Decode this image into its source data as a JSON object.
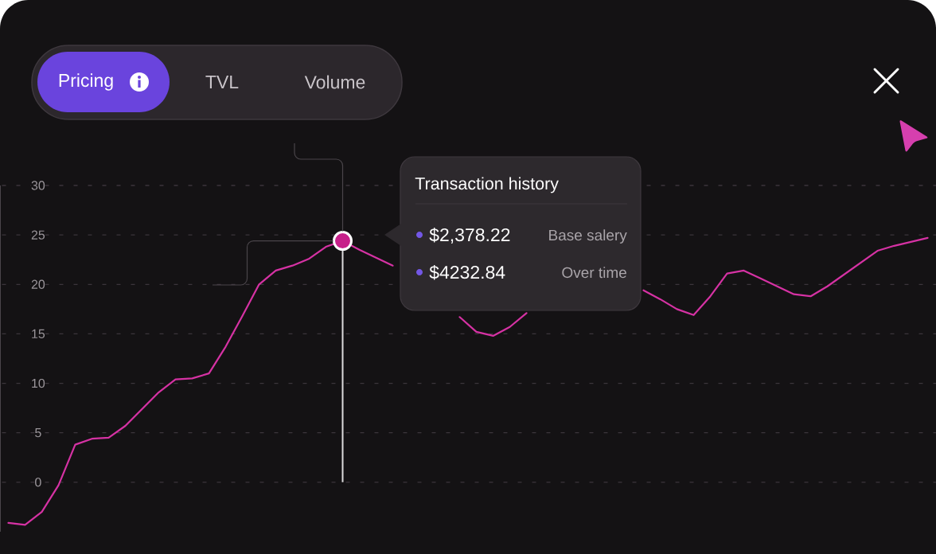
{
  "chart_data": {
    "type": "line",
    "categories": [
      null,
      null,
      null,
      null,
      null,
      null,
      null,
      null,
      null,
      null,
      null,
      null,
      null,
      null,
      null,
      null,
      null,
      null,
      null,
      null,
      null,
      null,
      null,
      null,
      null,
      null,
      null,
      null,
      null,
      null,
      null,
      null,
      null,
      null,
      null,
      null,
      null,
      null,
      null,
      null,
      null,
      null,
      null,
      null,
      null,
      null,
      null,
      null,
      null,
      null,
      null,
      null,
      null,
      null,
      null,
      null
    ],
    "series": [
      {
        "color": "#d632a4",
        "values": [
          -4.1,
          -4.3,
          -3.0,
          -0.3,
          3.8,
          4.4,
          4.5,
          5.7,
          7.4,
          9.1,
          10.4,
          10.5,
          11.0,
          13.7,
          16.8,
          20.0,
          21.4,
          21.9,
          22.6,
          23.8,
          24.4,
          23.5,
          22.7,
          21.9,
          null,
          null,
          null,
          16.7,
          15.2,
          14.8,
          15.7,
          17.1,
          null,
          null,
          null,
          null,
          null,
          null,
          19.4,
          18.5,
          17.5,
          16.9,
          18.8,
          21.1,
          21.4,
          20.6,
          19.8,
          19.0,
          18.8,
          19.8,
          21.0,
          22.2,
          23.4,
          23.9,
          24.3,
          24.7
        ]
      },
      {
        "type": "scatter",
        "color": "#c7208a",
        "marker": "circle",
        "values": [
          null,
          null,
          null,
          null,
          null,
          null,
          null,
          null,
          null,
          null,
          null,
          null,
          null,
          null,
          null,
          null,
          null,
          null,
          null,
          null,
          24.4,
          null,
          null,
          null,
          null,
          null,
          null,
          null,
          null,
          null,
          null,
          null,
          null,
          null,
          null,
          null,
          null,
          null,
          null,
          null,
          null,
          null,
          null,
          null,
          null,
          null,
          null,
          null,
          null,
          null,
          null,
          null,
          null,
          null,
          null,
          null
        ]
      }
    ],
    "ylim": [
      -5,
      30
    ],
    "yticks": [
      0,
      5,
      10,
      15,
      20,
      25,
      30
    ],
    "grid": "y",
    "marker": "none",
    "annotations": [
      "Pricing",
      "TVL",
      "Volume",
      "Transaction history",
      "$2,378.22",
      "Base salery",
      "$4232.84",
      "Over time"
    ]
  }
}
